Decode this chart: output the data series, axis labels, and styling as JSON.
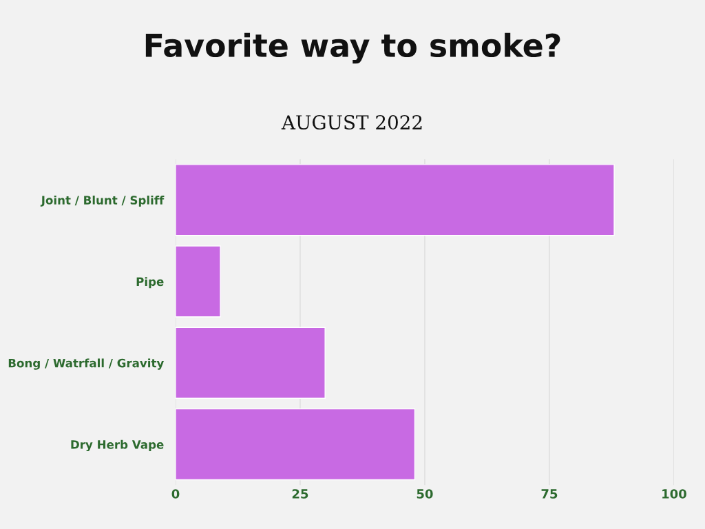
{
  "chart_data": {
    "type": "bar",
    "orientation": "horizontal",
    "title": "Favorite way to smoke?",
    "subtitle": "AUGUST 2022",
    "categories": [
      "Joint / Blunt / Spliff",
      "Pipe",
      "Bong / Watrfall / Gravity",
      "Dry Herb Vape"
    ],
    "values": [
      88,
      9,
      30,
      48
    ],
    "color": "#c86ae3",
    "xlim": [
      0,
      100
    ],
    "xticks": [
      0,
      25,
      50,
      75,
      100
    ],
    "grid": "x"
  }
}
